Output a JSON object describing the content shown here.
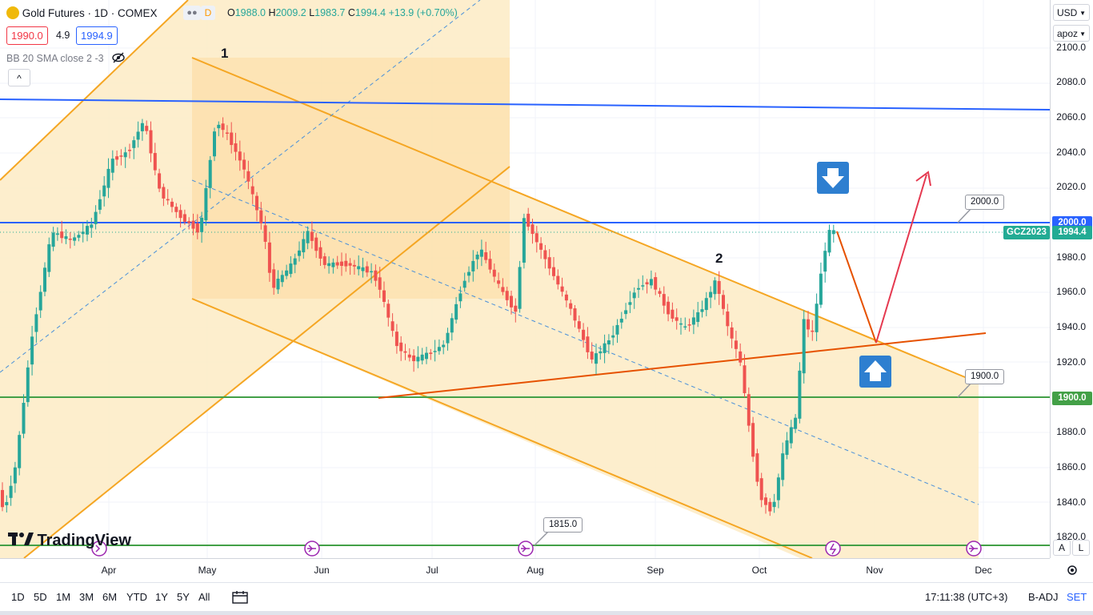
{
  "header": {
    "symbol_title": "Gold Futures · 1D · COMEX",
    "indicator_label": "D",
    "ohlc": {
      "o_label": "O",
      "o_value": "1988.0",
      "h_label": "H",
      "h_value": "2009.2",
      "l_label": "L",
      "l_value": "1983.7",
      "c_label": "C",
      "c_value": "1994.4",
      "change": "+13.9 (+0.70%)"
    },
    "sell_price": "1990.0",
    "spread": "4.9",
    "buy_price": "1994.9",
    "study_label": "BB 20 SMA close 2 -3",
    "collapse_glyph": "^"
  },
  "scale_controls": {
    "currency": "USD",
    "mode": "apoz"
  },
  "price_scale": {
    "ticks": [
      "2100.0",
      "2080.0",
      "2060.0",
      "2040.0",
      "2020.0",
      "2000.0",
      "1980.0",
      "1960.0",
      "1940.0",
      "1920.0",
      "1900.0",
      "1880.0",
      "1860.0",
      "1840.0",
      "1820.0"
    ],
    "labels": [
      {
        "text": "2000.0",
        "price": 2000,
        "color": "#2962ff"
      },
      {
        "text": "1994.4",
        "price": 1994.4,
        "color": "#22ab94"
      },
      {
        "text": "1900.0",
        "price": 1900,
        "color": "#43a047"
      }
    ],
    "symbol_tag": "GCZ2023",
    "auto_label": "A",
    "log_label": "L"
  },
  "time_axis": {
    "labels": [
      "Apr",
      "May",
      "Jun",
      "Jul",
      "Aug",
      "Sep",
      "Oct",
      "Nov",
      "Dec"
    ]
  },
  "annotations": {
    "wave_1": "1",
    "wave_2": "2",
    "callout_2000": "2000.0",
    "callout_1900": "1900.0",
    "callout_1815": "1815.0"
  },
  "branding": {
    "logo_text": "TradingView"
  },
  "bottom_bar": {
    "ranges": [
      "1D",
      "5D",
      "1M",
      "3M",
      "6M",
      "YTD",
      "1Y",
      "5Y",
      "All"
    ],
    "clock": "17:11:38 (UTC+3)",
    "badj": "B-ADJ",
    "set": "SET"
  },
  "colors": {
    "up": "#26a69a",
    "down": "#ef5350",
    "channel_fill": "#fdebc4",
    "channel_line": "#f5a623",
    "resistance": "#2962ff",
    "support": "#43a047",
    "trendline": "#e65100",
    "forecast_up": "#e53950",
    "signal_box": "#2e7fd0"
  },
  "icons": {
    "signal_down": "arrow-down-icon",
    "signal_up": "arrow-up-icon",
    "event_marker": "dividend-event-icon",
    "eye_off": "eye-off-icon",
    "calendar": "calendar-range-icon",
    "settings": "gear-icon",
    "gold": "gold-coin-icon"
  }
}
